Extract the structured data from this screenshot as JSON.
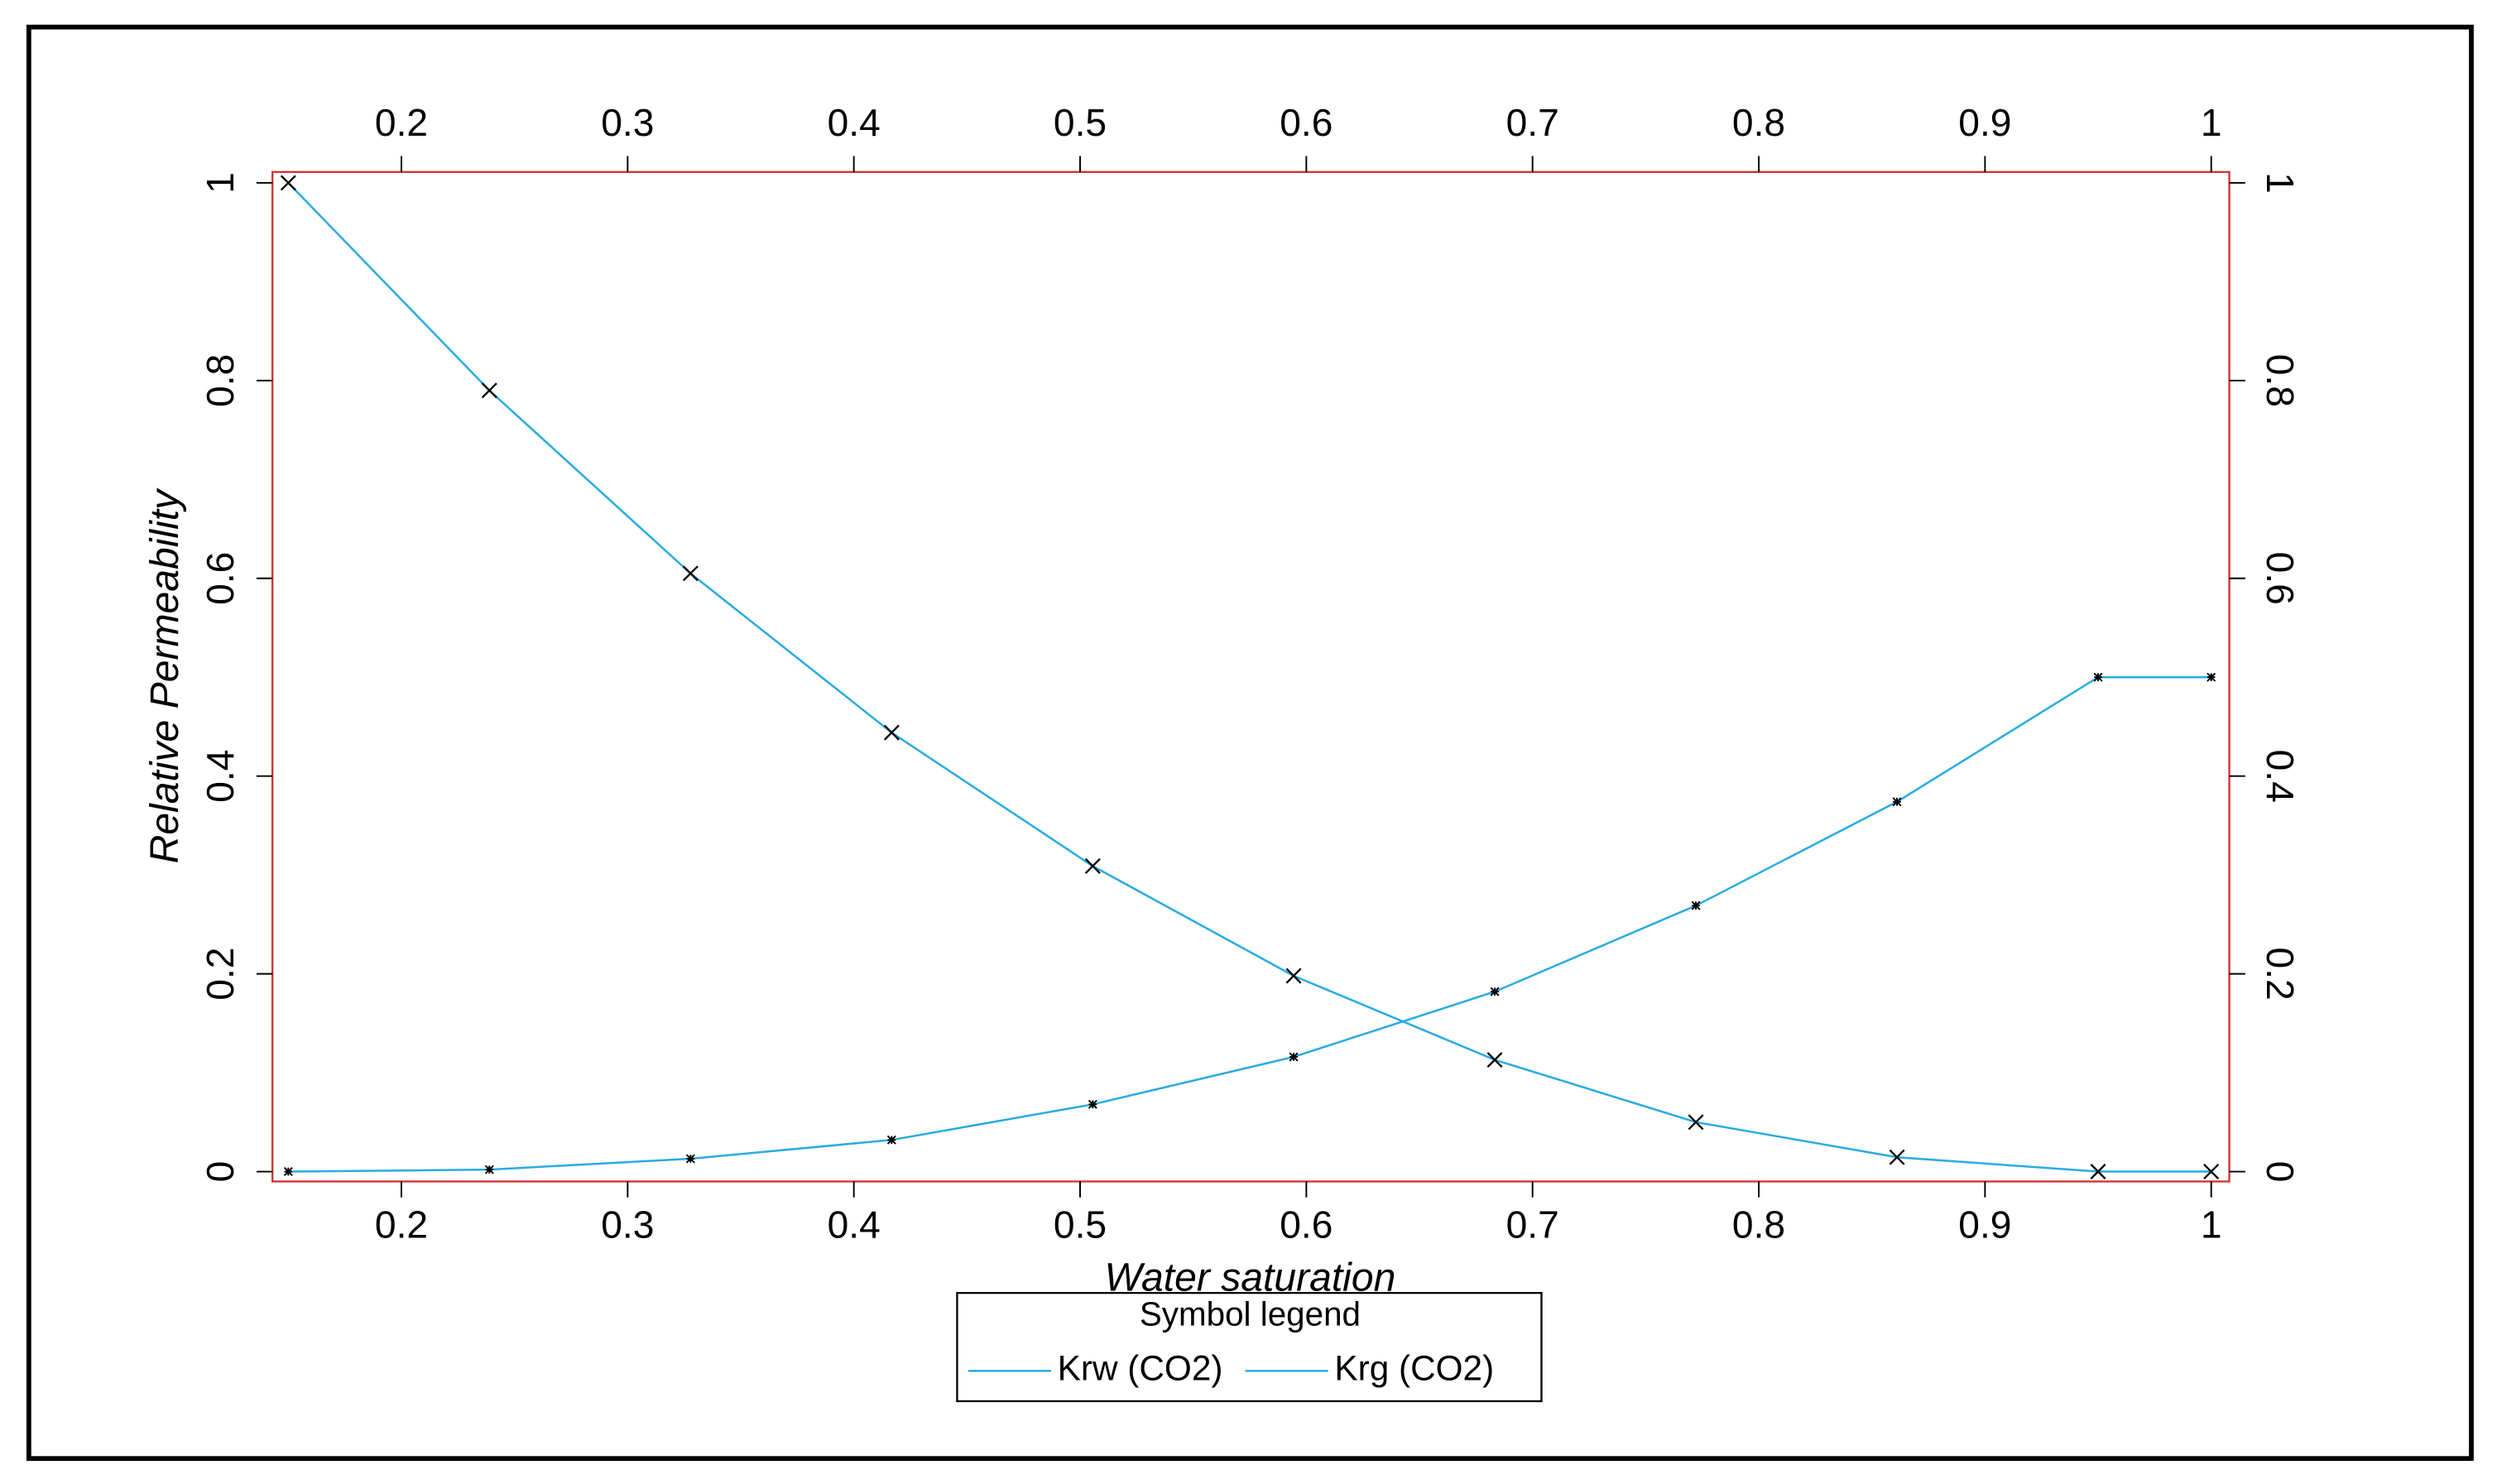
{
  "chart_data": {
    "type": "line",
    "x_label": "Water saturation",
    "y_label": "Relative Permeability",
    "legend_title": "Symbol legend",
    "x": [
      0.15,
      0.2389,
      0.3278,
      0.4167,
      0.5056,
      0.5944,
      0.6833,
      0.7722,
      0.8611,
      0.95,
      1.0
    ],
    "series": [
      {
        "name": "Krw (CO2)",
        "color": "#29abe2",
        "marker": "star",
        "values": [
          0,
          0.002,
          0.013,
          0.032,
          0.068,
          0.116,
          0.182,
          0.269,
          0.374,
          0.5,
          0.5
        ]
      },
      {
        "name": "Krg (CO2)",
        "color": "#29abe2",
        "marker": "x",
        "values": [
          1,
          0.79,
          0.605,
          0.444,
          0.309,
          0.198,
          0.113,
          0.05,
          0.0145,
          0,
          0
        ]
      }
    ],
    "xlim": [
      0.143,
      1.008
    ],
    "ylim": [
      -0.01,
      1.011
    ],
    "xticks": [
      0.2,
      0.3,
      0.4,
      0.5,
      0.6,
      0.7,
      0.8,
      0.9,
      1
    ],
    "yticks": [
      0,
      0.2,
      0.4,
      0.6,
      0.8,
      1
    ],
    "grid": false
  }
}
